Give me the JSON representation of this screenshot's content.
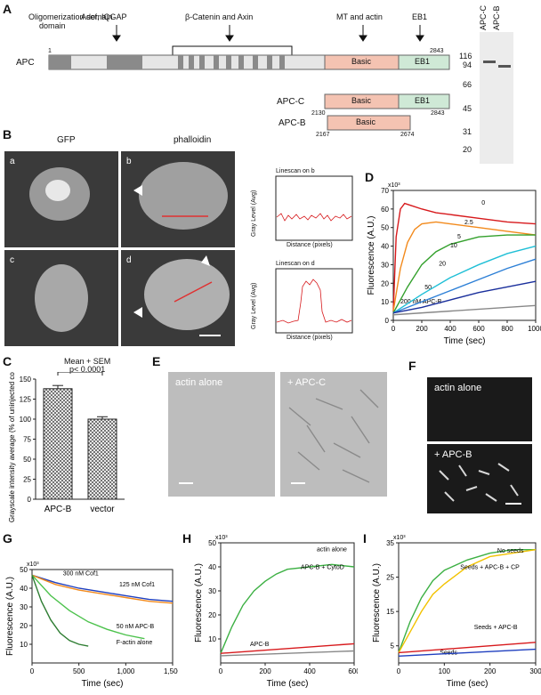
{
  "panels": {
    "A": "A",
    "B": "B",
    "C": "C",
    "D": "D",
    "E": "E",
    "F": "F",
    "G": "G",
    "H": "H",
    "I": "I"
  },
  "panelA": {
    "domain_labels": [
      "Oligomerization domain",
      "Asef, IQGAP",
      "β-Catenin and Axin",
      "MT and actin",
      "EB1"
    ],
    "row_labels": [
      "APC",
      "APC-C",
      "APC-B"
    ],
    "basic_label": "Basic",
    "eb1_label": "EB1",
    "numbers": {
      "apc_start": "1",
      "apc_end": "2843",
      "apcc_start": "2130",
      "apcc_end": "2843",
      "apcb_start": "2167",
      "apcb_end": "2674"
    }
  },
  "gel": {
    "lanes": [
      "APC-C",
      "APC-B"
    ],
    "markers": [
      "116",
      "94",
      "66",
      "45",
      "31",
      "20"
    ]
  },
  "panelB": {
    "col_labels": [
      "GFP",
      "phalloidin"
    ],
    "sub_labels": [
      "a",
      "b",
      "c",
      "d"
    ],
    "linescan_b_title": "Linescan on b",
    "linescan_d_title": "Linescan on d",
    "linescan_ylabel": "Gray Level (Avg)",
    "linescan_xlabel": "Distance (pixels)"
  },
  "panelC": {
    "annotation_top": "Mean + SEM",
    "annotation_p": "p< 0.0001",
    "ylabel": "Grayscale intensity average (% of uninjected control)"
  },
  "panelE": {
    "left": "actin alone",
    "right": "+ APC-C"
  },
  "panelF": {
    "top": "actin alone",
    "bottom": "+ APC-B"
  },
  "chart_data": [
    {
      "id": "C",
      "type": "bar",
      "categories": [
        "APC-B",
        "vector"
      ],
      "values": [
        138,
        100
      ],
      "errors": [
        4,
        3
      ],
      "ylabel": "Grayscale intensity average (% of uninjected control)",
      "ylim": [
        0,
        150
      ],
      "yticks": [
        0,
        25,
        50,
        75,
        100,
        125,
        150
      ]
    },
    {
      "id": "D",
      "type": "line",
      "scale_label": "x10³",
      "xlabel": "Time (sec)",
      "ylabel": "Fluorescence (A.U.)",
      "xlim": [
        0,
        1000
      ],
      "ylim": [
        0,
        70
      ],
      "xticks": [
        0,
        200,
        400,
        600,
        800,
        1000
      ],
      "yticks": [
        0,
        10,
        20,
        30,
        40,
        50,
        60,
        70
      ],
      "series": [
        {
          "name": "200 nM APC-B",
          "color": "#d7191c",
          "x": [
            0,
            20,
            50,
            80,
            120,
            200,
            300,
            400,
            600,
            800,
            1000
          ],
          "y": [
            5,
            45,
            60,
            63,
            62,
            60,
            58,
            57,
            55,
            53,
            52
          ]
        },
        {
          "name": "50",
          "color": "#f28a1c",
          "x": [
            0,
            50,
            100,
            150,
            200,
            300,
            400,
            600,
            800,
            1000
          ],
          "y": [
            5,
            28,
            42,
            49,
            52,
            53,
            52,
            50,
            48,
            46
          ]
        },
        {
          "name": "20",
          "color": "#33a02c",
          "x": [
            0,
            100,
            200,
            300,
            400,
            600,
            800,
            1000
          ],
          "y": [
            4,
            18,
            30,
            37,
            41,
            45,
            46,
            46
          ]
        },
        {
          "name": "10",
          "color": "#1fbfd6",
          "x": [
            0,
            200,
            400,
            600,
            800,
            1000
          ],
          "y": [
            4,
            14,
            23,
            30,
            36,
            40
          ]
        },
        {
          "name": "5",
          "color": "#2c7fd6",
          "x": [
            0,
            200,
            400,
            600,
            800,
            1000
          ],
          "y": [
            4,
            10,
            16,
            22,
            28,
            33
          ]
        },
        {
          "name": "2.5",
          "color": "#1a2f9c",
          "x": [
            0,
            200,
            400,
            600,
            800,
            1000
          ],
          "y": [
            4,
            7,
            11,
            15,
            18,
            21
          ]
        },
        {
          "name": "0",
          "color": "#888888",
          "x": [
            0,
            1000
          ],
          "y": [
            3,
            8
          ]
        }
      ]
    },
    {
      "id": "G",
      "type": "line",
      "scale_label": "x10³",
      "xlabel": "Time (sec)",
      "ylabel": "Fluorescence (A.U.)",
      "xlim": [
        0,
        1500
      ],
      "ylim": [
        0,
        50
      ],
      "xticks": [
        0,
        500,
        1000,
        1500
      ],
      "xticklabels": [
        "0",
        "500",
        "1,000",
        "1,500"
      ],
      "yticks": [
        10,
        20,
        30,
        40,
        50
      ],
      "series": [
        {
          "name": "F-actin alone",
          "color": "#1f3fbf",
          "x": [
            0,
            250,
            500,
            750,
            1000,
            1250,
            1500
          ],
          "y": [
            47,
            43,
            40,
            38,
            36,
            34,
            33
          ]
        },
        {
          "name": "50 nM APC-B",
          "color": "#f28a1c",
          "x": [
            0,
            250,
            500,
            750,
            1000,
            1250,
            1500
          ],
          "y": [
            47,
            42,
            39,
            37,
            35,
            33,
            32
          ]
        },
        {
          "name": "125 nM Cof1",
          "color": "#4cc24c",
          "x": [
            0,
            200,
            400,
            600,
            800,
            1000,
            1200
          ],
          "y": [
            47,
            36,
            28,
            22,
            18,
            15,
            13
          ]
        },
        {
          "name": "300 nM Cof1",
          "color": "#2e7d32",
          "x": [
            0,
            100,
            200,
            300,
            400,
            500,
            600
          ],
          "y": [
            47,
            33,
            23,
            16,
            12,
            10,
            9
          ]
        }
      ]
    },
    {
      "id": "H",
      "type": "line",
      "scale_label": "x10³",
      "xlabel": "Time (sec)",
      "ylabel": "Fluorescence (A.U.)",
      "xlim": [
        0,
        600
      ],
      "ylim": [
        0,
        50
      ],
      "xticks": [
        0,
        200,
        400,
        600
      ],
      "yticks": [
        10,
        20,
        30,
        40,
        50
      ],
      "series": [
        {
          "name": "APC-B",
          "color": "#3cb043",
          "x": [
            0,
            50,
            100,
            150,
            200,
            250,
            300,
            400,
            500,
            600
          ],
          "y": [
            4,
            15,
            24,
            30,
            34,
            37,
            39,
            40,
            41,
            40
          ]
        },
        {
          "name": "APC-B + CytoD",
          "color": "#d7191c",
          "x": [
            0,
            600
          ],
          "y": [
            4,
            8
          ]
        },
        {
          "name": "actin alone",
          "color": "#888888",
          "x": [
            0,
            600
          ],
          "y": [
            3,
            5
          ]
        }
      ]
    },
    {
      "id": "I",
      "type": "line",
      "scale_label": "x10³",
      "xlabel": "Time (sec)",
      "ylabel": "Fluorescence (A.U.)",
      "xlim": [
        0,
        300
      ],
      "ylim": [
        0,
        35
      ],
      "xticks": [
        0,
        100,
        200,
        300
      ],
      "yticks": [
        5,
        15,
        25,
        35
      ],
      "series": [
        {
          "name": "Seeds",
          "color": "#3cb043",
          "x": [
            0,
            25,
            50,
            75,
            100,
            150,
            200,
            250,
            300
          ],
          "y": [
            3,
            12,
            19,
            24,
            27,
            30,
            32,
            33,
            33
          ]
        },
        {
          "name": "Seeds + APC-B",
          "color": "#f2c200",
          "x": [
            0,
            25,
            50,
            75,
            100,
            150,
            200,
            250,
            300
          ],
          "y": [
            3,
            9,
            15,
            20,
            23,
            28,
            31,
            32,
            33
          ]
        },
        {
          "name": "Seeds + APC-B + CP",
          "color": "#d7191c",
          "x": [
            0,
            300
          ],
          "y": [
            3,
            6
          ]
        },
        {
          "name": "No seeds",
          "color": "#1f3fbf",
          "x": [
            0,
            300
          ],
          "y": [
            2,
            4
          ]
        }
      ]
    }
  ]
}
